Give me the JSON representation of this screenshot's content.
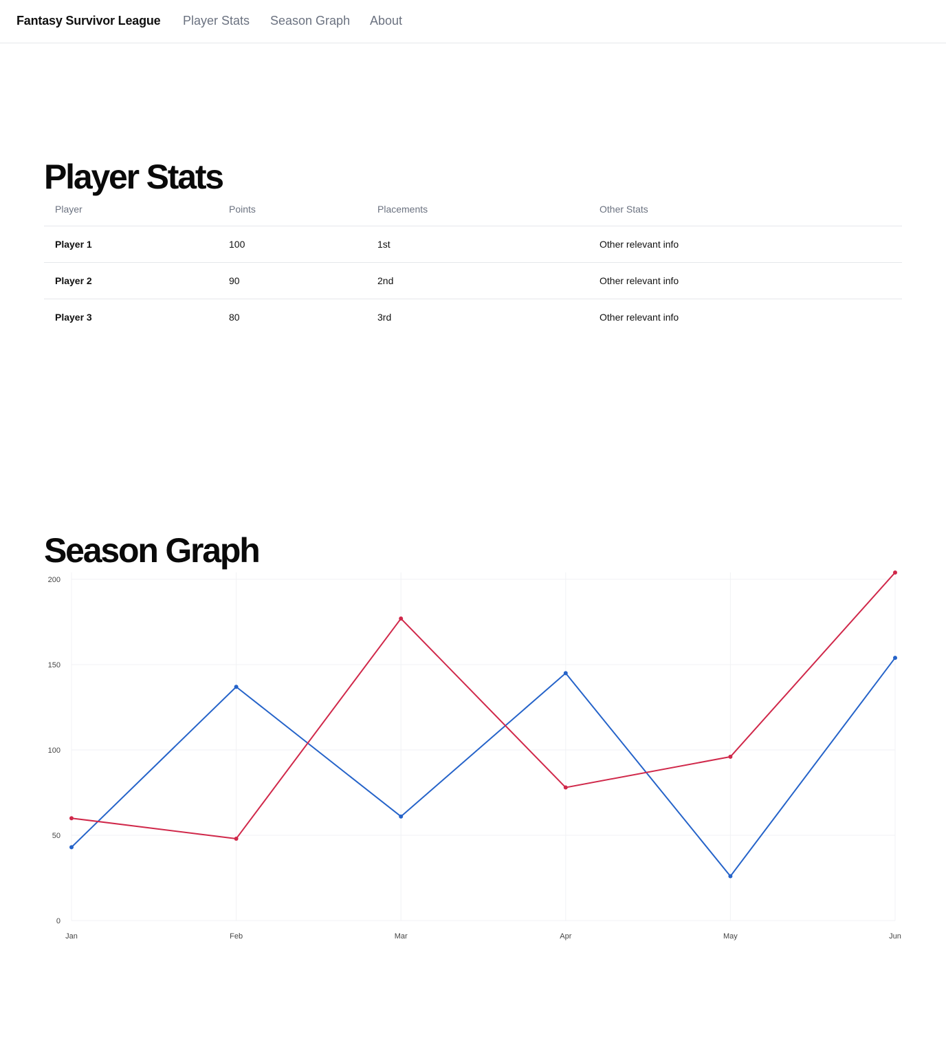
{
  "nav": {
    "brand": "Fantasy Survivor League",
    "links": [
      {
        "label": "Player Stats"
      },
      {
        "label": "Season Graph"
      },
      {
        "label": "About"
      }
    ]
  },
  "player_stats": {
    "title": "Player Stats",
    "columns": [
      "Player",
      "Points",
      "Placements",
      "Other Stats"
    ],
    "rows": [
      [
        "Player 1",
        "100",
        "1st",
        "Other relevant info"
      ],
      [
        "Player 2",
        "90",
        "2nd",
        "Other relevant info"
      ],
      [
        "Player 3",
        "80",
        "3rd",
        "Other relevant info"
      ]
    ]
  },
  "season_graph": {
    "title": "Season Graph"
  },
  "chart_data": {
    "type": "line",
    "x": [
      "Jan",
      "Feb",
      "Mar",
      "Apr",
      "May",
      "Jun"
    ],
    "series": [
      {
        "color": "#2563c9",
        "values": [
          43,
          137,
          61,
          145,
          26,
          154
        ]
      },
      {
        "color": "#d0284a",
        "values": [
          60,
          48,
          177,
          78,
          96,
          204
        ]
      }
    ],
    "ylim": [
      0,
      200
    ],
    "yticks": [
      "0",
      "50",
      "100",
      "150",
      "200"
    ],
    "grid": true,
    "legend": "none",
    "title": "",
    "xlabel": "",
    "ylabel": ""
  }
}
